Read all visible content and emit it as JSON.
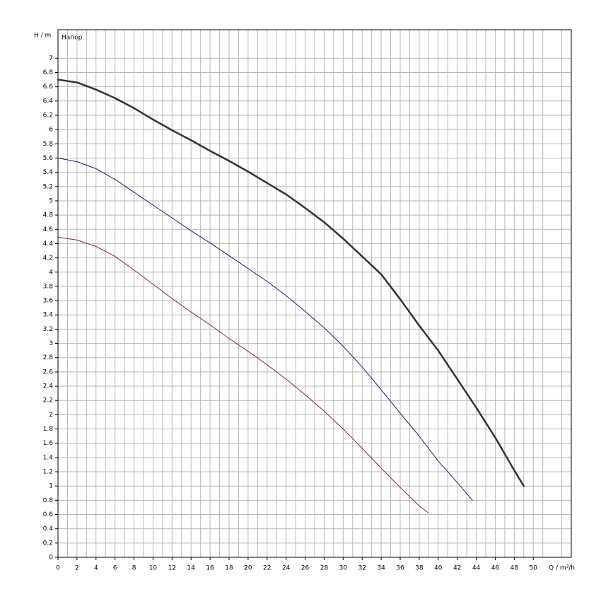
{
  "chart_data": {
    "type": "line",
    "y_axis_label": "H / m",
    "x_axis_label": "Q / m³/h",
    "annotation": "Напор",
    "xlim": [
      0,
      54
    ],
    "ylim": [
      0,
      7.4
    ],
    "xticks": [
      0,
      2,
      4,
      6,
      8,
      10,
      12,
      14,
      16,
      18,
      20,
      22,
      24,
      26,
      28,
      30,
      32,
      34,
      36,
      38,
      40,
      42,
      44,
      46,
      48,
      50
    ],
    "yticks": [
      0,
      0.2,
      0.4,
      0.6,
      0.8,
      1,
      1.2,
      1.4,
      1.6,
      1.8,
      2,
      2.2,
      2.4,
      2.6,
      2.8,
      3,
      3.2,
      3.4,
      3.6,
      3.8,
      4,
      4.2,
      4.4,
      4.6,
      4.8,
      5,
      5.2,
      5.4,
      5.6,
      5.8,
      6,
      6.2,
      6.4,
      6.6,
      6.8,
      7
    ],
    "grid": true,
    "series": [
      {
        "color": "#333333",
        "width": 2.5,
        "x": [
          0,
          2,
          4,
          6,
          8,
          10,
          12,
          14,
          16,
          18,
          20,
          22,
          24,
          26,
          28,
          30,
          32,
          34,
          36,
          38,
          40,
          42,
          44,
          46,
          48,
          49
        ],
        "values": [
          6.7,
          6.66,
          6.56,
          6.44,
          6.3,
          6.14,
          5.99,
          5.85,
          5.7,
          5.56,
          5.41,
          5.25,
          5.09,
          4.9,
          4.7,
          4.47,
          4.22,
          3.97,
          3.62,
          3.25,
          2.9,
          2.5,
          2.1,
          1.68,
          1.22,
          1.0
        ]
      },
      {
        "color": "#1a1a7a",
        "width": 1,
        "x": [
          0,
          2,
          4,
          6,
          8,
          10,
          12,
          14,
          16,
          18,
          20,
          22,
          24,
          26,
          28,
          30,
          32,
          34,
          36,
          38,
          40,
          42,
          43.6
        ],
        "values": [
          5.6,
          5.55,
          5.45,
          5.3,
          5.12,
          4.94,
          4.76,
          4.58,
          4.41,
          4.23,
          4.05,
          3.87,
          3.67,
          3.45,
          3.22,
          2.96,
          2.67,
          2.35,
          2.02,
          1.7,
          1.35,
          1.05,
          0.8
        ]
      },
      {
        "color": "#8a1a6a",
        "width": 1,
        "x": [
          0,
          2,
          4,
          6,
          8,
          10,
          12,
          14,
          16,
          18,
          20,
          22,
          24,
          26,
          28,
          30,
          32,
          34,
          36,
          38,
          38.9
        ],
        "values": [
          4.49,
          4.45,
          4.36,
          4.22,
          4.03,
          3.83,
          3.63,
          3.44,
          3.26,
          3.07,
          2.89,
          2.7,
          2.5,
          2.28,
          2.05,
          1.8,
          1.53,
          1.25,
          0.98,
          0.72,
          0.63
        ]
      }
    ]
  }
}
